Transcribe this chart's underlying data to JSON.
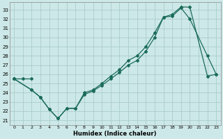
{
  "xlabel": "Humidex (Indice chaleur)",
  "bg_color": "#cde8e8",
  "line_color": "#1a6b5a",
  "grid_color": "#aacccc",
  "xlim": [
    -0.5,
    23.5
  ],
  "ylim": [
    20.5,
    33.8
  ],
  "xticks": [
    0,
    1,
    2,
    3,
    4,
    5,
    6,
    7,
    8,
    9,
    10,
    11,
    12,
    13,
    14,
    15,
    16,
    17,
    18,
    19,
    20,
    21,
    22,
    23
  ],
  "yticks": [
    21,
    22,
    23,
    24,
    25,
    26,
    27,
    28,
    29,
    30,
    31,
    32,
    33
  ],
  "line1_x": [
    0,
    1,
    2
  ],
  "line1_y": [
    25.5,
    25.5,
    25.5
  ],
  "line2_x": [
    0,
    2,
    3,
    4,
    5,
    6,
    7,
    8,
    9,
    10,
    11,
    12,
    13,
    14,
    15,
    16,
    17,
    18,
    19,
    20,
    22,
    23
  ],
  "line2_y": [
    25.5,
    24.3,
    23.5,
    22.2,
    21.2,
    22.3,
    22.3,
    23.8,
    24.2,
    24.8,
    25.5,
    26.2,
    27.0,
    27.5,
    28.5,
    30.0,
    32.2,
    32.5,
    33.3,
    33.3,
    25.8,
    26.0
  ],
  "line3_x": [
    0,
    2,
    3,
    4,
    5,
    6,
    7,
    8,
    9,
    10,
    11,
    12,
    13,
    14,
    15,
    16,
    17,
    18,
    19,
    20,
    22,
    23
  ],
  "line3_y": [
    25.5,
    24.3,
    23.5,
    22.2,
    21.2,
    22.3,
    22.3,
    24.0,
    24.3,
    25.0,
    25.8,
    26.5,
    27.5,
    28.0,
    29.0,
    30.5,
    32.2,
    32.3,
    33.2,
    32.0,
    28.0,
    26.0
  ]
}
